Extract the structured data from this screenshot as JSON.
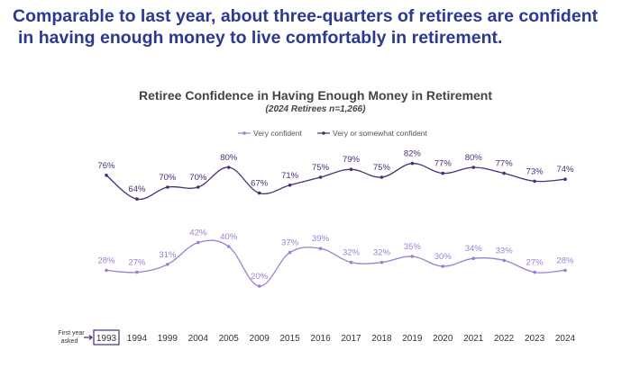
{
  "headline": {
    "line1": "Comparable to last year, about three-quarters of retirees are confident",
    "line2": "in having enough money to live comfortably in retirement."
  },
  "chart_data": {
    "type": "line",
    "title": "Retiree Confidence in Having Enough Money in Retirement",
    "subtitle": "(2024 Retirees n=1,266)",
    "categories": [
      "1993",
      "1994",
      "1999",
      "2004",
      "2005",
      "2009",
      "2015",
      "2016",
      "2017",
      "2018",
      "2019",
      "2020",
      "2021",
      "2022",
      "2023",
      "2024"
    ],
    "first_year_label": "First year asked",
    "highlighted_category": "1993",
    "legend_position": "top-center",
    "grid": false,
    "ylim": [
      0,
      100
    ],
    "series": [
      {
        "name": "Very confident",
        "color": "#9b7fd0",
        "values": [
          28,
          27,
          31,
          42,
          40,
          20,
          37,
          39,
          32,
          32,
          35,
          30,
          34,
          33,
          27,
          28
        ]
      },
      {
        "name": "Very or somewhat confident",
        "color": "#4a2c7a",
        "values": [
          76,
          64,
          70,
          70,
          80,
          67,
          71,
          75,
          79,
          75,
          82,
          77,
          80,
          77,
          73,
          74
        ]
      }
    ]
  }
}
